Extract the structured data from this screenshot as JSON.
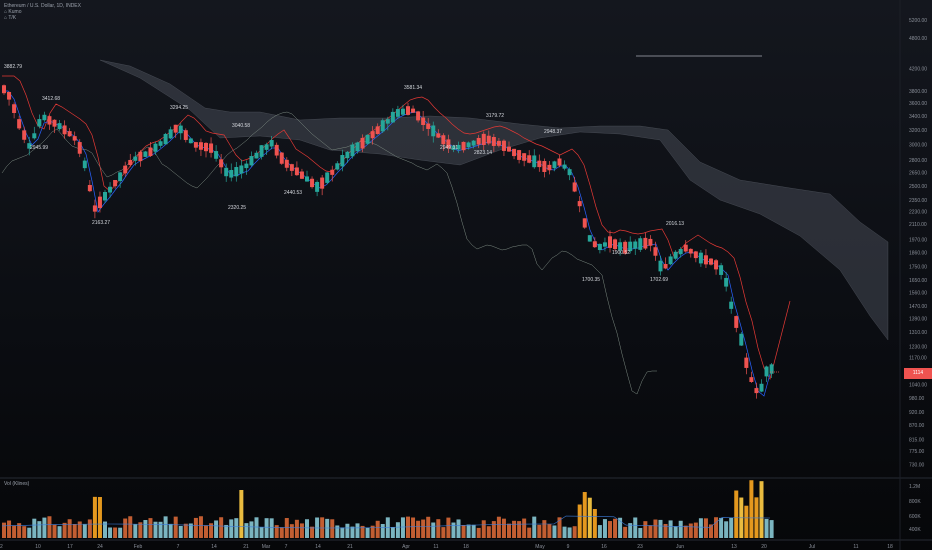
{
  "header": {
    "symbol_line": "Ethereum / U.S. Dollar, 1D, INDEX",
    "indicator_1": "⌂ Kumo",
    "indicator_2": "⌂ T/K"
  },
  "volume_panel": {
    "label": "Vol (Klines)"
  },
  "last_price_label": "1114",
  "colors": {
    "up": "#26a69a",
    "down": "#ef5350",
    "tenkan": "#2962ff",
    "kijun": "#e53935",
    "chikou": "#7d8b82",
    "cloud": "#555a66",
    "vol_up": "#8fd3e0",
    "vol_down": "#f0a020"
  },
  "chart_data": {
    "type": "candlestick",
    "title": "Ethereum / U.S. Dollar, 1D, INDEX",
    "y_axis": {
      "scale": "log",
      "range": [
        700,
        5600
      ],
      "tick_labels": [
        "5200.00",
        "4800.00",
        "4200.00",
        "3800.00",
        "3600.00",
        "3400.00",
        "3200.00",
        "3000.00",
        "2800.00",
        "2650.00",
        "2500.00",
        "2350.00",
        "2230.00",
        "2110.00",
        "1970.00",
        "1860.00",
        "1750.00",
        "1650.00",
        "1560.00",
        "1470.00",
        "1390.00",
        "1310.00",
        "1230.00",
        "1170.00",
        "1100.00",
        "1040.00",
        "980.00",
        "920.00",
        "870.00",
        "815.00",
        "775.00",
        "730.00"
      ]
    },
    "volume_axis": {
      "tick_labels": [
        "1.2M",
        "800K",
        "600K",
        "400K"
      ]
    },
    "x_axis": {
      "tick_labels": [
        "2",
        "10",
        "17",
        "24",
        "Feb",
        "7",
        "14",
        "21",
        "Mar",
        "7",
        "14",
        "21",
        "Apr",
        "11",
        "18",
        "May",
        "9",
        "16",
        "23",
        "Jun",
        "13",
        "20",
        "Jul",
        "11",
        "18"
      ]
    },
    "annotations": [
      {
        "text": "3882.79",
        "value": 3882.79
      },
      {
        "text": "3412.68",
        "value": 3412.68
      },
      {
        "text": "2945.99",
        "value": 2945.99
      },
      {
        "text": "2163.27",
        "value": 2163.27
      },
      {
        "text": "3294.25",
        "value": 3294.25
      },
      {
        "text": "3040.58",
        "value": 3040.58
      },
      {
        "text": "2320.25",
        "value": 2320.25
      },
      {
        "text": "2440.53",
        "value": 2440.53
      },
      {
        "text": "3581.34",
        "value": 3581.34
      },
      {
        "text": "2949.31",
        "value": 2949.31
      },
      {
        "text": "3179.72",
        "value": 3179.72
      },
      {
        "text": "2823.14",
        "value": 2823.14
      },
      {
        "text": "2948.37",
        "value": 2948.37
      },
      {
        "text": "1700.35",
        "value": 1700.35
      },
      {
        "text": "1900.52",
        "value": 1900.52
      },
      {
        "text": "2016.13",
        "value": 2016.13
      },
      {
        "text": "1702.69",
        "value": 1702.69
      }
    ],
    "last_price": 1114
  }
}
